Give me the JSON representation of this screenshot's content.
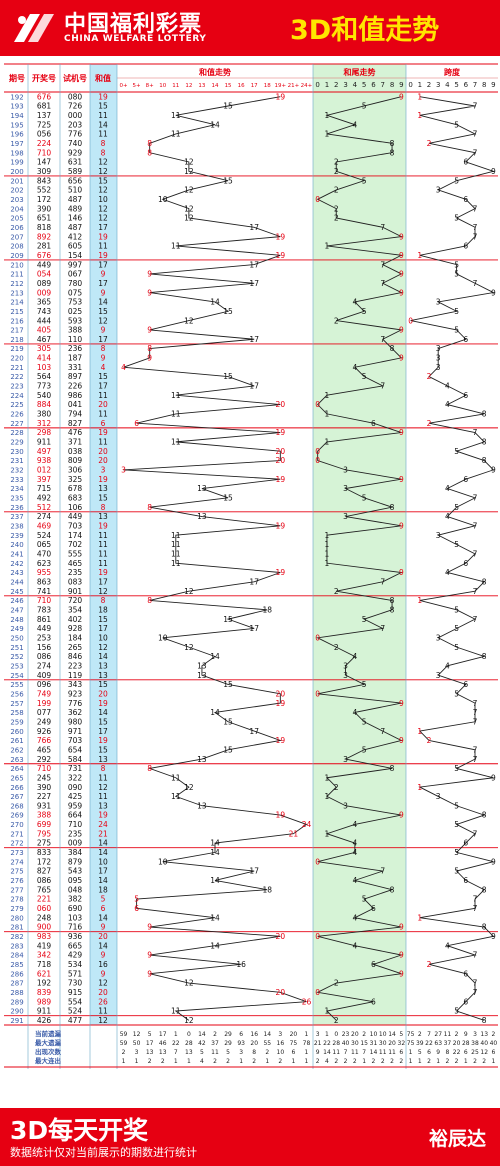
{
  "header": {
    "brand_cn": "中国福利彩票",
    "brand_en": "CHINA WELFARE LOTTERY",
    "title": "3D和值走势"
  },
  "footer": {
    "slogan": "3D每天开奖",
    "note": "数据统计仅对当前展示的期数进行统计",
    "author": "裕辰达"
  },
  "colors": {
    "brand_red": "#e60012",
    "title_yellow": "#ffe600",
    "sum_col_bg": "#bfe8f7",
    "tail_zone_bg": "#d6f3d6",
    "highlight": "#e60012",
    "number_blue": "#3a5ba8",
    "winning_red": "#e60012"
  },
  "columns": {
    "period": "期号",
    "winning": "开奖号",
    "test": "试机号",
    "sum": "和值",
    "sum_trend": "和值走势",
    "tail_trend": "和尾走势",
    "span": "跨度"
  },
  "sum_axis_labels": [
    "0+",
    "5+",
    "8+",
    "10",
    "11",
    "12",
    "13",
    "14",
    "15",
    "16",
    "17",
    "18",
    "19+",
    "21+",
    "24+"
  ],
  "digit_labels": [
    "0",
    "1",
    "2",
    "3",
    "4",
    "5",
    "6",
    "7",
    "8",
    "9"
  ],
  "chart_data": {
    "type": "table",
    "title": "3D和值走势",
    "rows": [
      [
        "192",
        "676",
        "080",
        19
      ],
      [
        "193",
        "681",
        "726",
        15
      ],
      [
        "194",
        "137",
        "000",
        11
      ],
      [
        "195",
        "725",
        "203",
        14
      ],
      [
        "196",
        "056",
        "776",
        11
      ],
      [
        "197",
        "224",
        "740",
        8
      ],
      [
        "198",
        "710",
        "929",
        8
      ],
      [
        "199",
        "147",
        "631",
        12
      ],
      [
        "200",
        "309",
        "589",
        12
      ],
      [
        "201",
        "843",
        "656",
        15
      ],
      [
        "202",
        "552",
        "510",
        12
      ],
      [
        "203",
        "172",
        "487",
        10
      ],
      [
        "204",
        "390",
        "489",
        12
      ],
      [
        "205",
        "651",
        "146",
        12
      ],
      [
        "206",
        "818",
        "487",
        17
      ],
      [
        "207",
        "892",
        "412",
        19
      ],
      [
        "208",
        "281",
        "605",
        11
      ],
      [
        "209",
        "676",
        "154",
        19
      ],
      [
        "210",
        "449",
        "997",
        17
      ],
      [
        "211",
        "054",
        "067",
        9
      ],
      [
        "212",
        "089",
        "780",
        17
      ],
      [
        "213",
        "009",
        "075",
        9
      ],
      [
        "214",
        "365",
        "753",
        14
      ],
      [
        "215",
        "743",
        "025",
        15
      ],
      [
        "216",
        "444",
        "593",
        12
      ],
      [
        "217",
        "405",
        "388",
        9
      ],
      [
        "218",
        "467",
        "110",
        17
      ],
      [
        "219",
        "305",
        "236",
        8
      ],
      [
        "220",
        "414",
        "187",
        9
      ],
      [
        "221",
        "103",
        "331",
        4
      ],
      [
        "222",
        "564",
        "897",
        15
      ],
      [
        "223",
        "773",
        "226",
        17
      ],
      [
        "224",
        "540",
        "986",
        11
      ],
      [
        "225",
        "884",
        "041",
        20
      ],
      [
        "226",
        "380",
        "794",
        11
      ],
      [
        "227",
        "312",
        "827",
        6
      ],
      [
        "228",
        "298",
        "476",
        19
      ],
      [
        "229",
        "911",
        "371",
        11
      ],
      [
        "230",
        "497",
        "038",
        20
      ],
      [
        "231",
        "938",
        "809",
        20
      ],
      [
        "232",
        "012",
        "306",
        3
      ],
      [
        "233",
        "397",
        "325",
        19
      ],
      [
        "234",
        "715",
        "678",
        13
      ],
      [
        "235",
        "492",
        "683",
        15
      ],
      [
        "236",
        "512",
        "106",
        8
      ],
      [
        "237",
        "274",
        "449",
        13
      ],
      [
        "238",
        "469",
        "703",
        19
      ],
      [
        "239",
        "524",
        "174",
        11
      ],
      [
        "240",
        "065",
        "702",
        11
      ],
      [
        "241",
        "470",
        "555",
        11
      ],
      [
        "242",
        "623",
        "465",
        11
      ],
      [
        "243",
        "955",
        "235",
        19
      ],
      [
        "244",
        "863",
        "083",
        17
      ],
      [
        "245",
        "741",
        "901",
        12
      ],
      [
        "246",
        "710",
        "720",
        8
      ],
      [
        "247",
        "783",
        "354",
        18
      ],
      [
        "248",
        "861",
        "402",
        15
      ],
      [
        "249",
        "449",
        "928",
        17
      ],
      [
        "250",
        "253",
        "184",
        10
      ],
      [
        "251",
        "156",
        "265",
        12
      ],
      [
        "252",
        "086",
        "846",
        14
      ],
      [
        "253",
        "274",
        "223",
        13
      ],
      [
        "254",
        "409",
        "119",
        13
      ],
      [
        "255",
        "096",
        "343",
        15
      ],
      [
        "256",
        "749",
        "923",
        20
      ],
      [
        "257",
        "199",
        "776",
        19
      ],
      [
        "258",
        "077",
        "362",
        14
      ],
      [
        "259",
        "249",
        "980",
        15
      ],
      [
        "260",
        "926",
        "971",
        17
      ],
      [
        "261",
        "766",
        "703",
        19
      ],
      [
        "262",
        "465",
        "654",
        15
      ],
      [
        "263",
        "292",
        "584",
        13
      ],
      [
        "264",
        "710",
        "731",
        8
      ],
      [
        "265",
        "245",
        "322",
        11
      ],
      [
        "266",
        "390",
        "090",
        12
      ],
      [
        "267",
        "227",
        "425",
        11
      ],
      [
        "268",
        "931",
        "959",
        13
      ],
      [
        "269",
        "388",
        "664",
        19
      ],
      [
        "270",
        "699",
        "710",
        24
      ],
      [
        "271",
        "795",
        "235",
        21
      ],
      [
        "272",
        "275",
        "009",
        14
      ],
      [
        "273",
        "833",
        "384",
        14
      ],
      [
        "274",
        "172",
        "879",
        10
      ],
      [
        "275",
        "827",
        "543",
        17
      ],
      [
        "276",
        "086",
        "095",
        14
      ],
      [
        "277",
        "765",
        "048",
        18
      ],
      [
        "278",
        "221",
        "382",
        5
      ],
      [
        "279",
        "060",
        "690",
        6
      ],
      [
        "280",
        "248",
        "103",
        14
      ],
      [
        "281",
        "900",
        "716",
        9
      ],
      [
        "282",
        "983",
        "936",
        20
      ],
      [
        "283",
        "419",
        "665",
        14
      ],
      [
        "284",
        "342",
        "429",
        9
      ],
      [
        "285",
        "718",
        "534",
        16
      ],
      [
        "286",
        "621",
        "571",
        9
      ],
      [
        "287",
        "192",
        "730",
        12
      ],
      [
        "288",
        "839",
        "915",
        20
      ],
      [
        "289",
        "989",
        "554",
        26
      ],
      [
        "290",
        "911",
        "524",
        11
      ],
      [
        "291",
        "426",
        "477",
        12
      ]
    ],
    "tail": [
      9,
      5,
      1,
      4,
      1,
      8,
      8,
      2,
      2,
      5,
      2,
      0,
      2,
      2,
      7,
      9,
      1,
      9,
      7,
      9,
      7,
      9,
      4,
      5,
      2,
      9,
      7,
      8,
      9,
      4,
      5,
      7,
      1,
      0,
      1,
      6,
      9,
      1,
      0,
      0,
      3,
      9,
      3,
      5,
      8,
      3,
      9,
      1,
      1,
      1,
      1,
      9,
      7,
      2,
      8,
      8,
      5,
      7,
      0,
      2,
      4,
      3,
      3,
      5,
      0,
      9,
      4,
      5,
      7,
      9,
      5,
      3,
      8,
      1,
      2,
      1,
      3,
      9,
      4,
      1,
      4,
      4,
      0,
      7,
      4,
      8,
      5,
      6,
      4,
      9,
      0,
      4,
      9,
      6,
      9,
      2,
      0,
      6,
      1,
      2
    ],
    "span": [
      1,
      7,
      1,
      5,
      7,
      2,
      7,
      6,
      9,
      5,
      3,
      6,
      7,
      5,
      7,
      7,
      6,
      1,
      5,
      5,
      7,
      9,
      3,
      5,
      0,
      5,
      6,
      3,
      3,
      3,
      2,
      4,
      6,
      4,
      8,
      2,
      7,
      8,
      5,
      8,
      9,
      6,
      4,
      7,
      5,
      4,
      7,
      3,
      5,
      7,
      6,
      4,
      8,
      7,
      1,
      5,
      7,
      5,
      3,
      5,
      8,
      4,
      3,
      6,
      5,
      7,
      7,
      7,
      1,
      2,
      7,
      7,
      5,
      9,
      1,
      3,
      5,
      8,
      5,
      7,
      6,
      5,
      9,
      5,
      6,
      8,
      7,
      7,
      1,
      8,
      9,
      4,
      7,
      2,
      6,
      7,
      7,
      6,
      5,
      8
    ]
  },
  "stats": {
    "labels": [
      "当前遗漏",
      "最大遗漏",
      "出现次数",
      "最大连出"
    ],
    "sum": [
      [
        59,
        12,
        5,
        17,
        1,
        0,
        14,
        2,
        29,
        6,
        16,
        14,
        3,
        20,
        1
      ],
      [
        59,
        50,
        17,
        46,
        22,
        28,
        42,
        37,
        29,
        93,
        20,
        55,
        16,
        75,
        78
      ],
      [
        2,
        3,
        13,
        13,
        7,
        13,
        5,
        11,
        5,
        3,
        8,
        2,
        10,
        6,
        1
      ],
      [
        1,
        1,
        2,
        2,
        1,
        1,
        4,
        2,
        2,
        1,
        2,
        1,
        2,
        1,
        1
      ]
    ],
    "tail": [
      [
        3,
        1,
        0,
        23,
        20,
        2,
        10,
        10,
        14,
        5
      ],
      [
        21,
        22,
        28,
        40,
        30,
        15,
        31,
        30,
        20,
        32
      ],
      [
        9,
        14,
        11,
        7,
        11,
        7,
        14,
        11,
        11,
        6
      ],
      [
        2,
        4,
        2,
        2,
        2,
        1,
        2,
        2,
        2,
        2
      ]
    ],
    "span": [
      [
        75,
        2,
        7,
        27,
        11,
        2,
        9,
        3,
        13,
        2
      ],
      [
        75,
        39,
        22,
        63,
        37,
        20,
        28,
        38,
        40,
        40
      ],
      [
        1,
        5,
        6,
        9,
        8,
        22,
        6,
        25,
        12,
        6
      ],
      [
        1,
        1,
        2,
        1,
        2,
        2,
        1,
        2,
        2,
        1
      ]
    ]
  }
}
